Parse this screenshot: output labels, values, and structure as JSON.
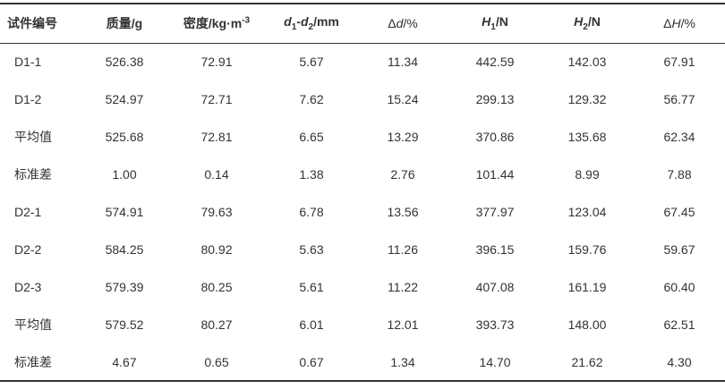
{
  "headers": {
    "c0": "试件编号",
    "c1": "质量/g",
    "c2_main": "密度/kg·m",
    "c2_sup": "-3",
    "c3_d": "d",
    "c3_sub1": "1",
    "c3_dash": "-",
    "c3_d2": "d",
    "c3_sub2": "2",
    "c3_unit": "/mm",
    "c4_delta": "Δ",
    "c4_d": "d",
    "c4_unit": "/%",
    "c5_h": "H",
    "c5_sub": "1",
    "c5_unit": "/N",
    "c6_h": "H",
    "c6_sub": "2",
    "c6_unit": "/N",
    "c7_delta": "Δ",
    "c7_h": "H",
    "c7_unit": "/%"
  },
  "rows": [
    [
      "D1-1",
      "526.38",
      "72.91",
      "5.67",
      "11.34",
      "442.59",
      "142.03",
      "67.91"
    ],
    [
      "D1-2",
      "524.97",
      "72.71",
      "7.62",
      "15.24",
      "299.13",
      "129.32",
      "56.77"
    ],
    [
      "平均值",
      "525.68",
      "72.81",
      "6.65",
      "13.29",
      "370.86",
      "135.68",
      "62.34"
    ],
    [
      "标准差",
      "1.00",
      "0.14",
      "1.38",
      "2.76",
      "101.44",
      "8.99",
      "7.88"
    ],
    [
      "D2-1",
      "574.91",
      "79.63",
      "6.78",
      "13.56",
      "377.97",
      "123.04",
      "67.45"
    ],
    [
      "D2-2",
      "584.25",
      "80.92",
      "5.63",
      "11.26",
      "396.15",
      "159.76",
      "59.67"
    ],
    [
      "D2-3",
      "579.39",
      "80.25",
      "5.61",
      "11.22",
      "407.08",
      "161.19",
      "60.40"
    ],
    [
      "平均值",
      "579.52",
      "80.27",
      "6.01",
      "12.01",
      "393.73",
      "148.00",
      "62.51"
    ],
    [
      "标准差",
      "4.67",
      "0.65",
      "0.67",
      "1.34",
      "14.70",
      "21.62",
      "4.30"
    ]
  ]
}
